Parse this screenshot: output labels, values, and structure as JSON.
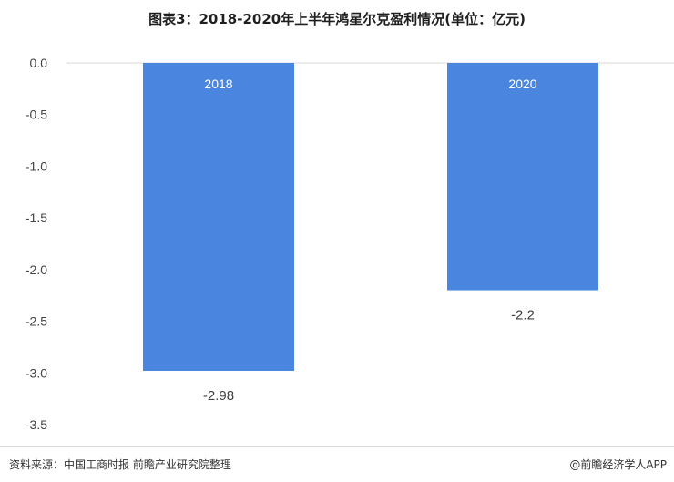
{
  "footer": {
    "source": "资料来源：中国工商时报 前瞻产业研究院整理",
    "brand": "@前瞻经济学人APP"
  },
  "colors": {
    "bar": "#4a86e0",
    "grid": "#d9d9d9",
    "tick_text": "#444444"
  },
  "chart_data": {
    "type": "bar",
    "title": "图表3：2018-2020年上半年鸿星尔克盈利情况(单位：亿元)",
    "categories": [
      "2018",
      "2020"
    ],
    "values": [
      -2.98,
      -2.2
    ],
    "value_labels": [
      "-2.98",
      "-2.2"
    ],
    "yticks": [
      "0.0",
      "-0.5",
      "-1.0",
      "-1.5",
      "-2.0",
      "-2.5",
      "-3.0",
      "-3.5"
    ],
    "ylim": [
      -3.5,
      0
    ],
    "xlabel": "",
    "ylabel": "",
    "grid": "none",
    "legend": "none",
    "category_label_position": "inside-bar-top"
  }
}
